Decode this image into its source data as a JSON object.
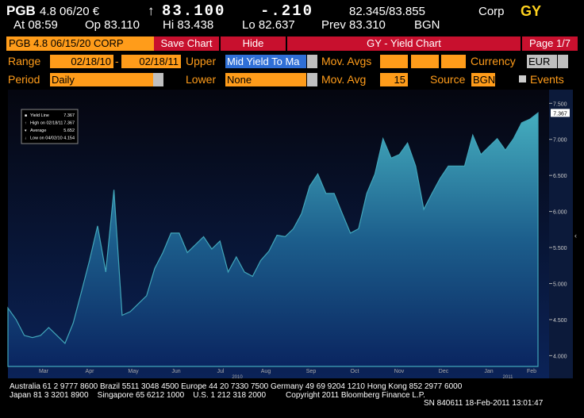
{
  "header": {
    "security": "PGB",
    "coupon": "4.8 06/20 €",
    "arrow": "↑",
    "price": "83.100",
    "change": "-.210",
    "bid_ask": "82.345/83.855",
    "market": "Corp",
    "function": "GY",
    "line2": [
      "At 08:59",
      "Op 83.110",
      "Hi 83.438",
      "Lo 82.637",
      "Prev 83.310",
      "BGN"
    ]
  },
  "toolbar": {
    "security": "PGB 4.8 06/15/20 CORP",
    "save": "Save Chart",
    "hide": "Hide",
    "title": "GY - Yield Chart",
    "page": "Page 1/7"
  },
  "controls": {
    "range_label": "Range",
    "range_from": "02/18/10",
    "range_sep": "-",
    "range_to": "02/18/11",
    "upper_label": "Upper",
    "upper_value": "Mid Yield To Ma",
    "mov_avgs_label": "Mov. Avgs",
    "currency_label": "Currency",
    "currency_value": "EUR",
    "period_label": "Period",
    "period_value": "Daily",
    "lower_label": "Lower",
    "lower_value": "None",
    "mov_avg_label": "Mov. Avg",
    "mov_avg_value": "15",
    "source_label": "Source",
    "source_value": "BGN",
    "events_label": "Events"
  },
  "chart_data": {
    "type": "area",
    "color": "#41a6ba",
    "values": [
      4.66,
      4.5,
      4.28,
      4.25,
      4.28,
      4.39,
      4.28,
      4.17,
      4.45,
      4.88,
      5.32,
      5.8,
      5.16,
      6.3,
      4.56,
      4.61,
      4.72,
      4.83,
      5.21,
      5.43,
      5.7,
      5.7,
      5.43,
      5.54,
      5.65,
      5.48,
      5.59,
      5.16,
      5.37,
      5.16,
      5.1,
      5.32,
      5.45,
      5.67,
      5.65,
      5.76,
      5.97,
      6.35,
      6.52,
      6.25,
      6.25,
      5.97,
      5.7,
      5.76,
      6.25,
      6.52,
      7.01,
      6.74,
      6.79,
      6.95,
      6.63,
      6.03,
      6.25,
      6.46,
      6.63,
      6.63,
      6.63,
      7.06,
      6.79,
      6.9,
      7.01,
      6.85,
      7.01,
      7.23,
      7.28,
      7.367
    ],
    "ylim": [
      3.85,
      7.69
    ],
    "yticks": [
      {
        "value": 4,
        "label": "4.000"
      },
      {
        "value": 4.5,
        "label": "4.500"
      },
      {
        "value": 5,
        "label": "5.000"
      },
      {
        "value": 5.5,
        "label": "5.500"
      },
      {
        "value": 6,
        "label": "6.000"
      },
      {
        "value": 6.5,
        "label": "6.500"
      },
      {
        "value": 7,
        "label": "7.000"
      },
      {
        "value": 7.5,
        "label": "7.500"
      }
    ],
    "x_axis_labels": [
      "Mar",
      "Apr",
      "May",
      "Jun",
      "Jul",
      "Aug",
      "Sep",
      "Oct",
      "Nov",
      "Dec",
      "Jan",
      "Feb"
    ],
    "x_axis_years": [
      "2010",
      "2011"
    ],
    "legend": [
      {
        "label": "Yield Line",
        "value": 7.367
      },
      {
        "label": "High on 02/18/11",
        "value": 7.367
      },
      {
        "label": "Average",
        "value": 5.652
      },
      {
        "label": "Low on 04/02/10",
        "value": 4.154
      }
    ]
  },
  "footer": [
    "Australia 61 2 9777 8600 Brazil 5511 3048 4500 Europe 44 20 7330 7500 Germany 49 69 9204 1210 Hong Kong 852 2977 6000",
    "Japan 81 3 3201 8900    Singapore 65 6212 1000    U.S. 1 212 318 2000         Copyright 2011 Bloomberg Finance L.P.",
    "SN 840611 18-Feb-2011 13:01:47"
  ]
}
